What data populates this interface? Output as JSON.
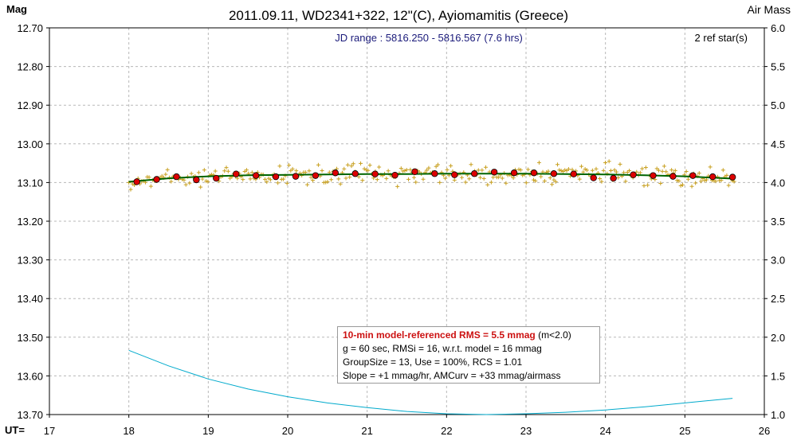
{
  "chart_data": {
    "type": "scatter",
    "title": "2011.09.11, WD2341+322, 12\"(C), Ayiomamitis (Greece)",
    "ylabel_left": "Mag",
    "ylabel_right": "Air Mass",
    "xlabel": "UT=",
    "subtitle": "JD range : 5816.250 - 5816.567 (7.6 hrs)",
    "ref_stars": "2 ref star(s)",
    "xlim": [
      17,
      26
    ],
    "ylim_mag": [
      12.7,
      13.7
    ],
    "ylim_airmass": [
      1.0,
      6.0
    ],
    "x_ticks": [
      "17",
      "18",
      "19",
      "20",
      "21",
      "22",
      "23",
      "24",
      "25",
      "26"
    ],
    "y_ticks_left": [
      "12.70",
      "12.80",
      "12.90",
      "13.00",
      "13.10",
      "13.20",
      "13.30",
      "13.40",
      "13.50",
      "13.60",
      "13.70"
    ],
    "y_ticks_right": [
      "6.0",
      "5.5",
      "5.0",
      "4.5",
      "4.0",
      "3.5",
      "3.0",
      "2.5",
      "2.0",
      "1.5",
      "1.0"
    ],
    "grid": true,
    "series": [
      {
        "kind": "binned",
        "x": [
          18.1,
          18.35,
          18.6,
          18.85,
          19.1,
          19.35,
          19.6,
          19.85,
          20.1,
          20.35,
          20.6,
          20.85,
          21.1,
          21.35,
          21.6,
          21.85,
          22.1,
          22.35,
          22.6,
          22.85,
          23.1,
          23.35,
          23.6,
          23.85,
          24.1,
          24.35,
          24.6,
          24.85,
          25.1,
          25.35,
          25.6
        ],
        "values": [
          13.098,
          13.092,
          13.085,
          13.093,
          13.089,
          13.078,
          13.082,
          13.085,
          13.084,
          13.082,
          13.075,
          13.077,
          13.078,
          13.081,
          13.072,
          13.077,
          13.08,
          13.077,
          13.073,
          13.075,
          13.075,
          13.077,
          13.078,
          13.088,
          13.089,
          13.08,
          13.082,
          13.084,
          13.082,
          13.085,
          13.086
        ],
        "color": "#dd0000"
      },
      {
        "kind": "model",
        "x": [
          18.0,
          18.5,
          19.0,
          19.5,
          20.0,
          20.5,
          21.0,
          21.5,
          22.0,
          22.5,
          23.0,
          23.5,
          24.0,
          24.5,
          25.0,
          25.6
        ],
        "values": [
          13.098,
          13.089,
          13.084,
          13.081,
          13.08,
          13.079,
          13.078,
          13.078,
          13.077,
          13.077,
          13.077,
          13.078,
          13.079,
          13.081,
          13.084,
          13.09
        ],
        "color": "#006400"
      },
      {
        "kind": "airmass",
        "x": [
          18.0,
          18.5,
          19.0,
          19.5,
          20.0,
          20.5,
          21.0,
          21.5,
          22.0,
          22.5,
          23.0,
          23.5,
          24.0,
          24.5,
          25.0,
          25.6
        ],
        "values": [
          1.83,
          1.63,
          1.46,
          1.33,
          1.23,
          1.15,
          1.09,
          1.04,
          1.01,
          1.0,
          1.01,
          1.03,
          1.06,
          1.1,
          1.15,
          1.21
        ],
        "color": "#00aacc"
      }
    ],
    "raw_points": {
      "color": "#c8a020",
      "x_start": 18.0,
      "x_end": 25.62,
      "count": 330,
      "center": 13.08,
      "scatter_sigma": 0.012
    },
    "stats_box": {
      "rms_label": "10-min model-referenced RMS = 5.5 mmag",
      "rms_note": "(m<2.0)",
      "line2": "g = 60 sec, RMSi = 16, w.r.t. model = 16 mmag",
      "line3": "GroupSize = 13, Use = 100%, RCS = 1.01",
      "line4": "Slope = +1 mmag/hr, AMCurv = +33 mmag/airmass"
    }
  }
}
